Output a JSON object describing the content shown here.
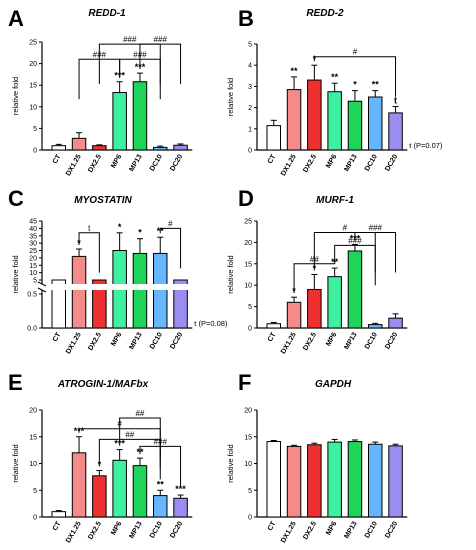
{
  "chart_data": [
    {
      "panel": "A",
      "type": "bar",
      "title": "REDD-1",
      "ylabel": "relative fold",
      "categories": [
        "CT",
        "DX1.25",
        "DX2.5",
        "MP6",
        "MP13",
        "DC10",
        "DC20"
      ],
      "values": [
        1.0,
        2.7,
        1.0,
        13.3,
        15.8,
        0.6,
        1.1
      ],
      "errors": [
        0.3,
        1.3,
        0.2,
        2.5,
        2.0,
        0.3,
        0.3
      ],
      "ylim": [
        0,
        25
      ],
      "yticks": [
        "0",
        "5",
        "10",
        "15",
        "20",
        "25"
      ],
      "marks": [
        "",
        "",
        "",
        "***",
        "***",
        "",
        ""
      ],
      "brackets": [
        {
          "from": 1,
          "to": 3,
          "label": "###",
          "level": 21
        },
        {
          "from": 2,
          "to": 5,
          "label": "###",
          "level": 24.5
        },
        {
          "from": 3,
          "to": 5,
          "label": "###",
          "level": 21
        },
        {
          "from": 4,
          "to": 6,
          "label": "###",
          "level": 24.5
        }
      ]
    },
    {
      "panel": "B",
      "type": "bar",
      "title": "REDD-2",
      "ylabel": "relative fold",
      "categories": [
        "CT",
        "DX1.25",
        "DX2.5",
        "MP6",
        "MP13",
        "DC10",
        "DC20"
      ],
      "values": [
        1.15,
        2.85,
        3.3,
        2.75,
        2.3,
        2.5,
        1.75
      ],
      "errors": [
        0.25,
        0.6,
        0.7,
        0.4,
        0.5,
        0.3,
        0.3
      ],
      "ylim": [
        0,
        5
      ],
      "yticks": [
        "0",
        "1",
        "2",
        "3",
        "4",
        "5"
      ],
      "marks": [
        "",
        "**",
        "*",
        "**",
        "*",
        "**",
        "t"
      ],
      "brackets": [
        {
          "from": 2,
          "to": 6,
          "label": "#",
          "level": 4.4
        }
      ],
      "note": "t (P=0.07)"
    },
    {
      "panel": "C",
      "type": "bar",
      "title": "MYOSTATIN",
      "ylabel": "relative fold",
      "categories": [
        "CT",
        "DX1.25",
        "DX2.5",
        "MP6",
        "MP13",
        "DC10",
        "DC20"
      ],
      "values": [
        1.2,
        21.0,
        1.0,
        25.0,
        23.0,
        23.0,
        0.8
      ],
      "errors": [
        0.2,
        5.0,
        1.1,
        12.0,
        10.0,
        11.0,
        0.4
      ],
      "ylim": [
        0,
        45
      ],
      "yticks": [
        "0.0",
        "0.5",
        "5",
        "10",
        "15",
        "20",
        "25",
        "30",
        "35",
        "40",
        "45"
      ],
      "yaxis_break": true,
      "marks": [
        "",
        "*",
        "",
        "*",
        "*",
        "**",
        ""
      ],
      "brackets": [
        {
          "from": 1,
          "to": 2,
          "label": "t",
          "level": 37
        },
        {
          "from": 5,
          "to": 6,
          "label": "#",
          "level": 40
        }
      ],
      "note": "t (P=0.08)"
    },
    {
      "panel": "D",
      "type": "bar",
      "title": "MURF-1",
      "ylabel": "relative fold",
      "categories": [
        "CT",
        "DX1.25",
        "DX2.5",
        "MP6",
        "MP13",
        "DC10",
        "DC20"
      ],
      "values": [
        1.0,
        6.0,
        9.0,
        12.0,
        18.0,
        0.8,
        2.3
      ],
      "errors": [
        0.3,
        1.2,
        3.5,
        2.0,
        1.5,
        0.3,
        1.0
      ],
      "ylim": [
        0,
        25
      ],
      "yticks": [
        "0",
        "5",
        "10",
        "15",
        "20",
        "25"
      ],
      "marks": [
        "",
        "*",
        "*",
        "**",
        "***",
        "",
        ""
      ],
      "brackets": [
        {
          "from": 1,
          "to": 3,
          "label": "##",
          "level": 15
        },
        {
          "from": 2,
          "to": 5,
          "label": "#",
          "level": 22.3
        },
        {
          "from": 3,
          "to": 5,
          "label": "###",
          "level": 19.3
        },
        {
          "from": 4,
          "to": 6,
          "label": "###",
          "level": 22.3
        }
      ]
    },
    {
      "panel": "E",
      "type": "bar",
      "title": "ATROGIN-1/MAFbx",
      "ylabel": "relative fold",
      "categories": [
        "CT",
        "DX1.25",
        "DX2.5",
        "MP6",
        "MP13",
        "DC10",
        "DC20"
      ],
      "values": [
        1.0,
        12.0,
        7.7,
        10.6,
        9.6,
        4.0,
        3.5
      ],
      "errors": [
        0.2,
        3.0,
        1.0,
        2.0,
        1.4,
        1.0,
        0.6
      ],
      "ylim": [
        0,
        20
      ],
      "yticks": [
        "0",
        "5",
        "10",
        "15",
        "20"
      ],
      "marks": [
        "",
        "***",
        "*",
        "***",
        "**",
        "**",
        "***"
      ],
      "brackets": [
        {
          "from": 1,
          "to": 5,
          "label": "#",
          "level": 16.5
        },
        {
          "from": 3,
          "to": 5,
          "label": "##",
          "level": 18.5
        },
        {
          "from": 2,
          "to": 5,
          "label": "##",
          "level": 14.5
        },
        {
          "from": 4,
          "to": 6,
          "label": "###",
          "level": 13.2
        }
      ]
    },
    {
      "panel": "F",
      "type": "bar",
      "title": "GAPDH",
      "ylabel": "relative fold",
      "categories": [
        "CT",
        "DX1.25",
        "DX2.5",
        "MP6",
        "MP13",
        "DC10",
        "DC20"
      ],
      "values": [
        14.1,
        13.2,
        13.5,
        14.0,
        14.1,
        13.6,
        13.3
      ],
      "errors": [
        0.2,
        0.2,
        0.3,
        0.5,
        0.3,
        0.4,
        0.3
      ],
      "ylim": [
        0,
        20
      ],
      "yticks": [
        "0",
        "5",
        "10",
        "15",
        "20"
      ],
      "marks": [
        "",
        "",
        "",
        "",
        "",
        "",
        ""
      ],
      "brackets": []
    }
  ],
  "bar_colors": [
    "#ffffff",
    "#f48a8a",
    "#ee3030",
    "#3ef0a0",
    "#1fd45a",
    "#66b6ff",
    "#9a8df0"
  ]
}
